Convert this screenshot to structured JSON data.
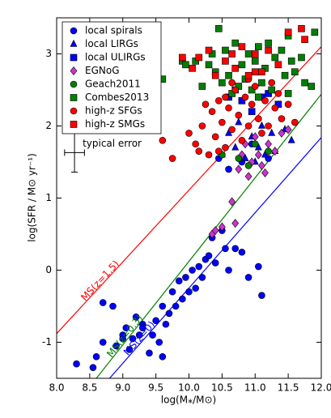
{
  "chart_data": {
    "type": "scatter",
    "xlabel": "log(M⁎/M⊙)",
    "ylabel": "log(SFR / M⊙ yr⁻¹)",
    "xlim": [
      8.0,
      12.0
    ],
    "ylim": [
      -1.5,
      3.5
    ],
    "xticks": [
      {
        "value": 8,
        "label": "8.0"
      },
      8.5,
      {
        "value": 9,
        "label": "9.0"
      },
      9.5,
      {
        "value": 10,
        "label": "10.0"
      },
      10.5,
      {
        "value": 11,
        "label": "11.0"
      },
      11.5,
      {
        "value": 12,
        "label": "12.0"
      }
    ],
    "yticks": [
      -1,
      0,
      1,
      2,
      3
    ],
    "legend": "upper left",
    "series": [
      {
        "name": "local spirals",
        "marker": "circle",
        "color": "#0000ff",
        "x": [
          8.3,
          8.55,
          8.6,
          8.7,
          8.7,
          8.85,
          8.9,
          9.0,
          9.05,
          9.1,
          9.15,
          9.2,
          9.25,
          9.3,
          9.4,
          9.45,
          9.5,
          9.55,
          9.6,
          9.6,
          9.65,
          9.7,
          9.75,
          9.8,
          9.85,
          9.9,
          9.95,
          10.0,
          10.05,
          10.1,
          10.15,
          10.2,
          10.25,
          10.3,
          10.35,
          10.4,
          10.5,
          10.55,
          10.6,
          10.7,
          10.8,
          10.9,
          11.05,
          11.1,
          10.45,
          10.6,
          10.8,
          11.2,
          10.95,
          9.3,
          9.0
        ],
        "values": [
          -1.3,
          -1.35,
          -1.2,
          -1.0,
          -0.45,
          -0.5,
          -1.05,
          -0.9,
          -0.8,
          -1.1,
          -0.95,
          -0.65,
          -0.9,
          -0.75,
          -1.15,
          -0.9,
          -0.7,
          -1.0,
          -1.2,
          -0.5,
          -0.75,
          -0.6,
          -0.3,
          -0.5,
          -0.15,
          -0.4,
          -0.1,
          -0.3,
          0.0,
          -0.25,
          0.05,
          -0.1,
          0.15,
          0.2,
          0.45,
          0.1,
          0.55,
          0.3,
          0.0,
          0.3,
          0.25,
          -0.1,
          0.05,
          -0.35,
          1.55,
          1.4,
          1.5,
          1.55,
          1.75,
          -0.8,
          -0.95
        ]
      },
      {
        "name": "local LIRGs",
        "marker": "triangle",
        "color": "#0000ff",
        "x": [
          10.5,
          10.6,
          10.7,
          10.75,
          10.85,
          10.95,
          11.05,
          11.1,
          11.15,
          11.25,
          11.3,
          11.45,
          11.55,
          11.0
        ],
        "values": [
          1.6,
          1.9,
          1.7,
          2.05,
          1.55,
          1.85,
          1.7,
          2.0,
          1.6,
          1.9,
          1.65,
          1.95,
          1.8,
          1.5
        ]
      },
      {
        "name": "local ULIRGs",
        "marker": "square",
        "color": "#0000ff",
        "x": [
          10.6,
          10.8,
          10.95,
          11.1,
          11.2,
          11.35,
          10.7
        ],
        "values": [
          2.4,
          2.35,
          2.2,
          2.4,
          2.45,
          2.3,
          2.5
        ]
      },
      {
        "name": "EGNoG",
        "marker": "diamond",
        "color": "#cc33cc",
        "x": [
          10.35,
          10.4,
          10.5,
          10.65,
          10.7,
          10.75,
          10.8,
          10.9,
          10.95,
          11.0,
          11.05,
          11.1,
          11.2,
          11.3,
          11.4,
          11.5,
          11.15,
          10.85
        ],
        "values": [
          0.5,
          0.55,
          0.6,
          0.95,
          0.65,
          1.4,
          1.6,
          1.3,
          1.5,
          1.85,
          1.6,
          1.45,
          1.75,
          1.65,
          1.9,
          1.95,
          1.35,
          1.75
        ]
      },
      {
        "name": "Geach2011",
        "marker": "circle",
        "color": "#008000",
        "x": [
          10.5,
          10.75,
          11.0,
          11.2,
          10.9
        ],
        "values": [
          1.6,
          1.55,
          1.75,
          1.65,
          1.45
        ]
      },
      {
        "name": "Combes2013",
        "marker": "square",
        "color": "#008000",
        "x": [
          9.6,
          9.9,
          9.95,
          10.1,
          10.2,
          10.3,
          10.35,
          10.4,
          10.5,
          10.55,
          10.6,
          10.65,
          10.7,
          10.75,
          10.8,
          10.85,
          10.9,
          10.95,
          11.0,
          11.05,
          11.1,
          11.15,
          11.2,
          11.25,
          11.3,
          11.4,
          11.45,
          11.5,
          11.55,
          11.6,
          11.7,
          11.75,
          11.85,
          11.9,
          11.5,
          10.45,
          11.05
        ],
        "values": [
          2.65,
          2.9,
          2.85,
          2.9,
          2.55,
          2.85,
          3.0,
          2.75,
          2.6,
          3.05,
          2.7,
          2.45,
          3.15,
          2.55,
          2.85,
          2.65,
          3.0,
          2.5,
          2.9,
          3.1,
          2.6,
          2.8,
          3.15,
          2.5,
          2.95,
          3.05,
          2.7,
          2.45,
          2.9,
          2.75,
          2.95,
          2.6,
          2.55,
          3.3,
          3.25,
          3.35,
          2.4
        ]
      },
      {
        "name": "high-z SFGs",
        "marker": "circle",
        "color": "#ff0000",
        "x": [
          9.6,
          9.75,
          10.0,
          10.1,
          10.2,
          10.3,
          10.35,
          10.4,
          10.45,
          10.5,
          10.55,
          10.6,
          10.65,
          10.7,
          10.75,
          10.8,
          10.85,
          10.9,
          10.95,
          11.0,
          11.05,
          11.1,
          11.15,
          11.2,
          11.3,
          11.35,
          11.4,
          11.5,
          11.6,
          10.25,
          10.65,
          11.25,
          10.45,
          10.9,
          10.15,
          10.55
        ],
        "values": [
          1.8,
          1.55,
          1.9,
          1.75,
          2.0,
          1.6,
          2.2,
          1.85,
          2.35,
          2.05,
          1.7,
          2.25,
          1.95,
          2.5,
          2.15,
          1.8,
          2.4,
          2.0,
          2.3,
          2.55,
          2.1,
          1.9,
          2.35,
          2.0,
          2.25,
          2.45,
          2.1,
          2.3,
          2.05,
          2.3,
          2.6,
          2.6,
          1.65,
          2.65,
          1.65,
          2.4
        ]
      },
      {
        "name": "high-z SMGs",
        "marker": "square",
        "color": "#ff0000",
        "x": [
          9.9,
          10.05,
          10.15,
          10.3,
          10.4,
          10.55,
          10.7,
          10.8,
          10.9,
          11.0,
          11.1,
          11.2,
          11.35,
          11.5,
          11.75,
          11.7,
          10.65,
          11.0
        ],
        "values": [
          2.95,
          2.8,
          2.95,
          3.05,
          2.7,
          2.9,
          2.8,
          3.1,
          2.7,
          3.0,
          2.75,
          3.05,
          2.85,
          3.3,
          3.2,
          3.35,
          3.0,
          2.75
        ]
      }
    ],
    "lines": [
      {
        "name": "MS(z=1.5)",
        "color": "#ff0000",
        "x": [
          8.0,
          12.0
        ],
        "values": [
          -0.88,
          3.1
        ]
      },
      {
        "name": "MS(z=0.3)",
        "color": "#008000",
        "x": [
          8.6,
          12.0
        ],
        "values": [
          -1.5,
          2.44
        ]
      },
      {
        "name": "MS(z=0)",
        "color": "#0000ff",
        "x": [
          8.8,
          12.0
        ],
        "values": [
          -1.5,
          1.84
        ]
      }
    ],
    "typical_error": {
      "label": "typical error",
      "x": 8.27,
      "y": 1.63,
      "xerr": 0.15,
      "yerr": 0.27
    }
  }
}
